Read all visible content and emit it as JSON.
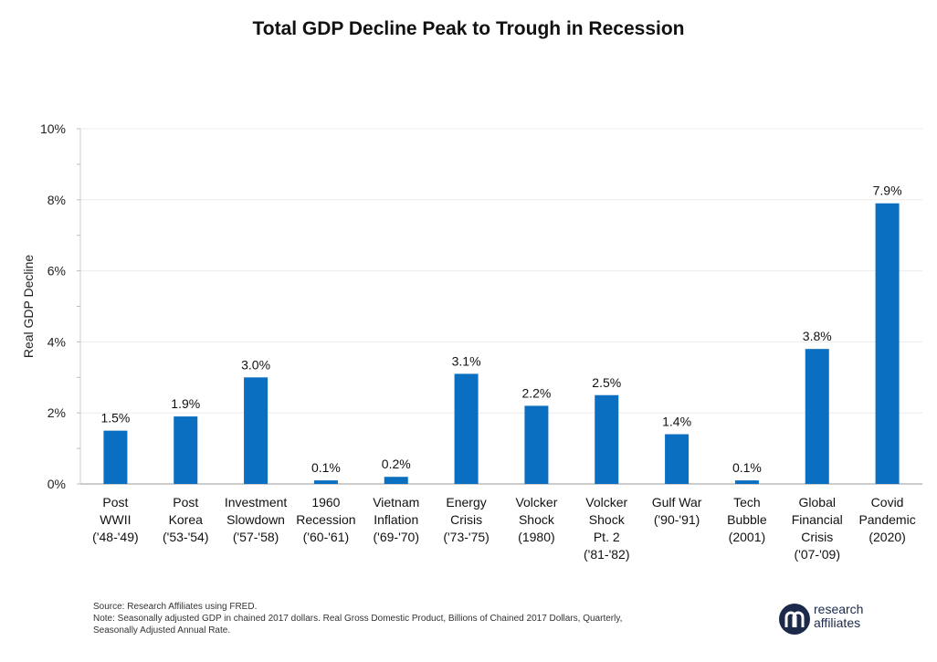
{
  "chart_data": {
    "type": "bar",
    "title": "Total GDP Decline Peak to Trough in Recession",
    "ylabel": "Real GDP Decline",
    "xlabel": "",
    "ylim": [
      0,
      10
    ],
    "yticks": [
      "0%",
      "2%",
      "4%",
      "6%",
      "8%",
      "10%"
    ],
    "grid": true,
    "categories": [
      [
        "Post",
        "WWII",
        "('48-'49)"
      ],
      [
        "Post",
        "Korea",
        "('53-'54)"
      ],
      [
        "Investment",
        "Slowdown",
        "('57-'58)"
      ],
      [
        "1960",
        "Recession",
        "('60-'61)"
      ],
      [
        "Vietnam",
        "Inflation",
        "('69-'70)"
      ],
      [
        "Energy",
        "Crisis",
        "('73-'75)"
      ],
      [
        "Volcker",
        "Shock",
        "(1980)"
      ],
      [
        "Volcker",
        "Shock",
        "Pt. 2",
        "('81-'82)"
      ],
      [
        "Gulf War",
        "('90-'91)"
      ],
      [
        "Tech",
        "Bubble",
        "(2001)"
      ],
      [
        "Global",
        "Financial",
        "Crisis",
        "('07-'09)"
      ],
      [
        "Covid",
        "Pandemic",
        "(2020)"
      ]
    ],
    "values": [
      1.5,
      1.9,
      3.0,
      0.1,
      0.2,
      3.1,
      2.2,
      2.5,
      1.4,
      0.1,
      3.8,
      7.9
    ],
    "data_labels": [
      "1.5%",
      "1.9%",
      "3.0%",
      "0.1%",
      "0.2%",
      "3.1%",
      "2.2%",
      "2.5%",
      "1.4%",
      "0.1%",
      "3.8%",
      "7.9%"
    ],
    "bar_color": "#0b6fc1"
  },
  "footnote": {
    "source": "Source: Research Affiliates using FRED.",
    "note_line1": "Note: Seasonally adjusted GDP in chained 2017 dollars. Real Gross Domestic Product, Billions of Chained 2017 Dollars, Quarterly,",
    "note_line2": "Seasonally Adjusted Annual Rate."
  },
  "logo": {
    "line1": "research",
    "line2": "affiliates",
    "icon": "research-affiliates-logo-icon",
    "color": "#1b2a4a"
  }
}
